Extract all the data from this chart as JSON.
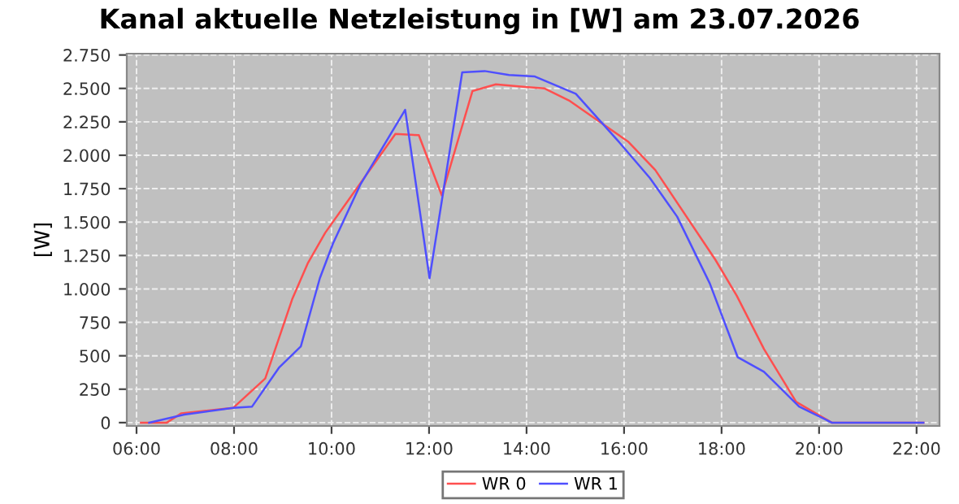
{
  "chart_data": {
    "type": "line",
    "title": "Kanal aktuelle Netzleistung in [W] am 23.07.2026",
    "ylabel": "[W]",
    "series": [
      {
        "name": "WR 0",
        "color": "#ff4f4f",
        "x": [
          6.09,
          6.62,
          6.92,
          7.98,
          8.64,
          9.2,
          9.51,
          9.87,
          11.31,
          11.79,
          12.26,
          12.89,
          13.37,
          13.98,
          14.37,
          14.87,
          15.42,
          16.09,
          16.64,
          17.87,
          18.31,
          18.87,
          19.53,
          20.26,
          22.14
        ],
        "values": [
          0,
          0,
          70,
          110,
          330,
          930,
          1190,
          1420,
          2160,
          2150,
          1700,
          2480,
          2530,
          2510,
          2500,
          2410,
          2270,
          2100,
          1890,
          1220,
          950,
          550,
          155,
          0,
          0
        ]
      },
      {
        "name": "WR 1",
        "color": "#4f4fff",
        "x": [
          6.26,
          6.98,
          7.98,
          8.37,
          8.92,
          9.37,
          9.76,
          10.03,
          10.59,
          11.51,
          12.01,
          12.68,
          13.14,
          13.64,
          14.16,
          15.01,
          15.87,
          16.53,
          17.09,
          17.76,
          18.33,
          18.87,
          19.59,
          20.26,
          22.14
        ],
        "values": [
          0,
          60,
          110,
          120,
          410,
          570,
          1080,
          1340,
          1780,
          2340,
          1080,
          2620,
          2630,
          2600,
          2590,
          2460,
          2110,
          1830,
          1540,
          1040,
          490,
          380,
          120,
          0,
          0
        ]
      }
    ],
    "xlim": [
      5.8,
      22.47
    ],
    "ylim": [
      -25,
      2760
    ],
    "xticks": [
      {
        "value": 6,
        "label": "06:00"
      },
      {
        "value": 8,
        "label": "08:00"
      },
      {
        "value": 10,
        "label": "10:00"
      },
      {
        "value": 12,
        "label": "12:00"
      },
      {
        "value": 14,
        "label": "14:00"
      },
      {
        "value": 16,
        "label": "16:00"
      },
      {
        "value": 18,
        "label": "18:00"
      },
      {
        "value": 20,
        "label": "20:00"
      },
      {
        "value": 22,
        "label": "22:00"
      }
    ],
    "yticks": [
      0,
      250,
      500,
      750,
      {
        "value": 1000,
        "label": "1.000"
      },
      {
        "value": 1250,
        "label": "1.250"
      },
      {
        "value": 1500,
        "label": "1.500"
      },
      {
        "value": 1750,
        "label": "1.750"
      },
      {
        "value": 2000,
        "label": "2.000"
      },
      {
        "value": 2250,
        "label": "2.250"
      },
      {
        "value": 2500,
        "label": "2.500"
      },
      {
        "value": 2750,
        "label": "2.750"
      }
    ],
    "grid": true,
    "legend": "bottom",
    "marker": "none",
    "line_style": "solid"
  }
}
